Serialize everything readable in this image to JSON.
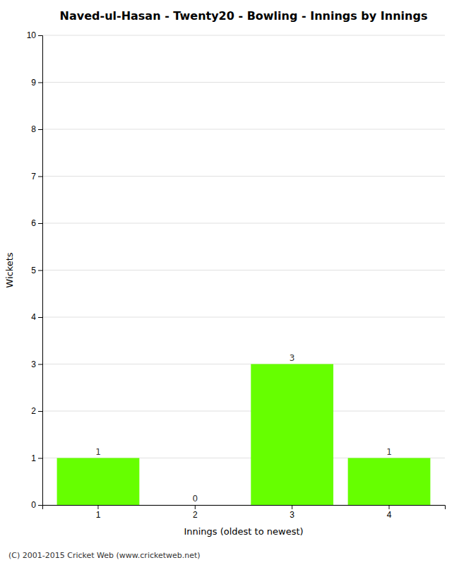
{
  "chart_data": {
    "type": "bar",
    "title": "Naved-ul-Hasan - Twenty20 - Bowling - Innings by Innings",
    "x_label": "Innings (oldest to newest)",
    "y_label": "Wickets",
    "categories": [
      1,
      2,
      3,
      4
    ],
    "values": [
      1,
      0,
      3,
      1
    ],
    "color": "#66ff00",
    "ylim": [
      0,
      10
    ],
    "yticks": [
      0,
      1,
      2,
      3,
      4,
      5,
      6,
      7,
      8,
      9,
      10
    ],
    "grid": true,
    "data_labels": true,
    "annotations": [
      "(C) 2001-2015 Cricket Web (www.cricketweb.net)"
    ]
  }
}
